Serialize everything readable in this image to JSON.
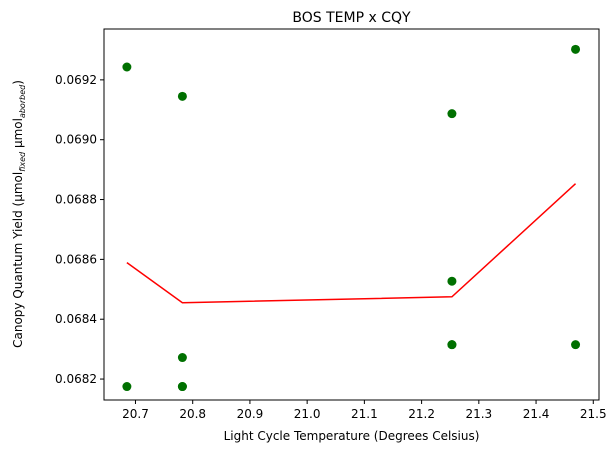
{
  "chart_data": {
    "type": "scatter",
    "title": "BOS TEMP x CQY",
    "xlabel": "Light Cycle Temperature (Degrees Celsius)",
    "ylabel": {
      "prefix": "Canopy Quantum Yield (µmol",
      "sub1": "fixed",
      "mid": " µmol",
      "sub2": "aborbed",
      "suffix": ")"
    },
    "xlim": [
      20.645,
      21.51
    ],
    "ylim": [
      0.06813,
      0.06937
    ],
    "xticks": [
      {
        "value": 20.7,
        "label": "20.7"
      },
      {
        "value": 20.8,
        "label": "20.8"
      },
      {
        "value": 20.9,
        "label": "20.9"
      },
      {
        "value": 21.0,
        "label": "21.0"
      },
      {
        "value": 21.1,
        "label": "21.1"
      },
      {
        "value": 21.2,
        "label": "21.2"
      },
      {
        "value": 21.3,
        "label": "21.3"
      },
      {
        "value": 21.4,
        "label": "21.4"
      },
      {
        "value": 21.5,
        "label": "21.5"
      }
    ],
    "yticks": [
      {
        "value": 0.0682,
        "label": "0.0682"
      },
      {
        "value": 0.0684,
        "label": "0.0684"
      },
      {
        "value": 0.0686,
        "label": "0.0686"
      },
      {
        "value": 0.0688,
        "label": "0.0688"
      },
      {
        "value": 0.069,
        "label": "0.0690"
      },
      {
        "value": 0.0692,
        "label": "0.0692"
      }
    ],
    "grid": false,
    "series": [
      {
        "kind": "scatter",
        "color": "#007000",
        "points": [
          {
            "x": 20.685,
            "y": 0.069243
          },
          {
            "x": 20.685,
            "y": 0.068175
          },
          {
            "x": 20.782,
            "y": 0.069145
          },
          {
            "x": 20.782,
            "y": 0.068272
          },
          {
            "x": 20.782,
            "y": 0.068175
          },
          {
            "x": 20.782,
            "y": 0.068175
          },
          {
            "x": 21.253,
            "y": 0.069087
          },
          {
            "x": 21.253,
            "y": 0.068527
          },
          {
            "x": 21.253,
            "y": 0.068315
          },
          {
            "x": 21.253,
            "y": 0.068315
          },
          {
            "x": 21.469,
            "y": 0.069302
          },
          {
            "x": 21.469,
            "y": 0.068315
          }
        ]
      },
      {
        "kind": "line",
        "color": "#ff0000",
        "points": [
          {
            "x": 20.685,
            "y": 0.068589
          },
          {
            "x": 20.782,
            "y": 0.068455
          },
          {
            "x": 21.253,
            "y": 0.068475
          },
          {
            "x": 21.469,
            "y": 0.068853
          }
        ]
      }
    ]
  }
}
